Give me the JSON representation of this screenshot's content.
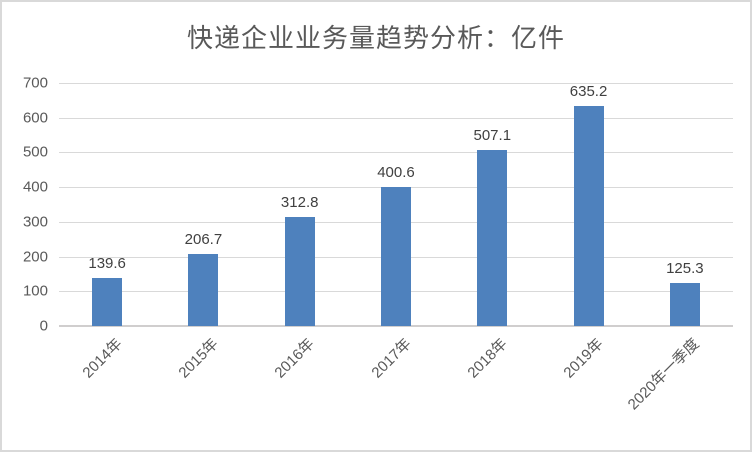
{
  "title": "快递企业业务量趋势分析：亿件",
  "chart_data": {
    "type": "bar",
    "title": "快递企业业务量趋势分析：亿件",
    "categories": [
      "2014年",
      "2015年",
      "2016年",
      "2017年",
      "2018年",
      "2019年",
      "2020年一季度"
    ],
    "values": [
      139.6,
      206.7,
      312.8,
      400.6,
      507.1,
      635.2,
      125.3
    ],
    "data_labels": [
      "139.6",
      "206.7",
      "312.8",
      "400.6",
      "507.1",
      "635.2",
      "125.3"
    ],
    "xlabel": "",
    "ylabel": "",
    "ylim": [
      0,
      700
    ],
    "yticks": [
      "0",
      "100",
      "200",
      "300",
      "400",
      "500",
      "600",
      "700"
    ],
    "grid": true,
    "legend": false,
    "colors": {
      "bar": "#4e81bd",
      "gridline": "#d9d9d9",
      "axis_line": "#d0cece",
      "title_text": "#595959",
      "tick_text": "#595959",
      "value_text": "#404040",
      "frame_border": "#d9d9d9",
      "background": "#ffffff"
    }
  }
}
